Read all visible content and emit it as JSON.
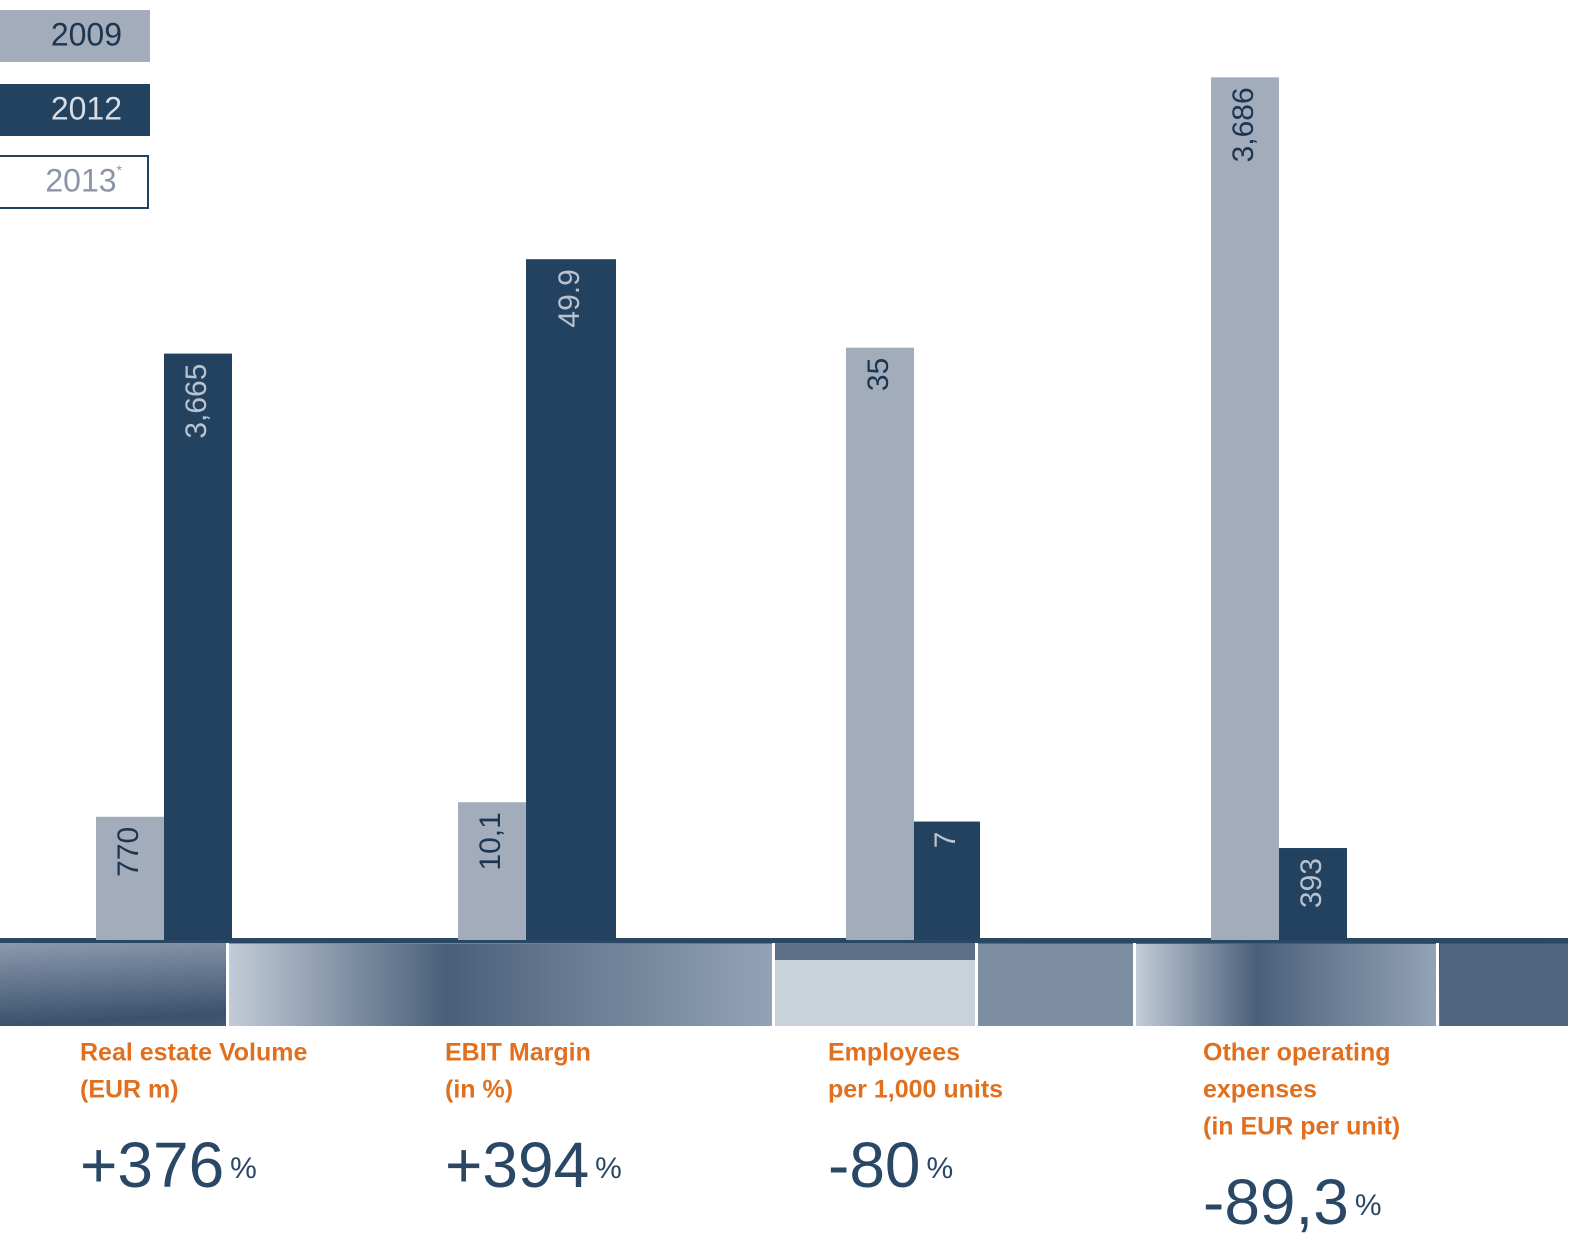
{
  "legend": [
    {
      "label": "2009",
      "color": "#a3acbb"
    },
    {
      "label": "2012",
      "color": "#234260"
    },
    {
      "label": "2013",
      "sup": "*",
      "color": "#ffffff"
    }
  ],
  "chart_data": [
    {
      "type": "bar",
      "title": [
        "Real estate Volume",
        "(EUR m)"
      ],
      "change": "+376",
      "change_unit": "%",
      "ylim": [
        0,
        5500
      ],
      "series": [
        {
          "name": "2009",
          "color": "#a3acbb",
          "values": [
            770
          ],
          "value_labels": [
            "770"
          ]
        },
        {
          "name": "2012",
          "color": "#234260",
          "values": [
            3665
          ],
          "value_labels": [
            "3,665"
          ]
        }
      ]
    },
    {
      "type": "bar",
      "title": [
        "EBIT Margin",
        "(in %)"
      ],
      "change": "+394",
      "change_unit": "%",
      "ylim": [
        0,
        64.5
      ],
      "series": [
        {
          "name": "2009",
          "color": "#a3acbb",
          "values": [
            10.1
          ],
          "value_labels": [
            "10,1"
          ]
        },
        {
          "name": "2012",
          "color": "#234260",
          "values": [
            49.9
          ],
          "value_labels": [
            "49.9"
          ]
        }
      ]
    },
    {
      "type": "bar",
      "title": [
        "Employees",
        "per 1,000 units"
      ],
      "change": "-80",
      "change_unit": "%",
      "ylim": [
        0,
        52
      ],
      "series": [
        {
          "name": "2009",
          "color": "#a3acbb",
          "values": [
            35
          ],
          "value_labels": [
            "35"
          ]
        },
        {
          "name": "2012",
          "color": "#234260",
          "values": [
            7
          ],
          "value_labels": [
            "7"
          ]
        }
      ]
    },
    {
      "type": "bar",
      "title": [
        "Other operating",
        "expenses",
        "(in EUR per unit)"
      ],
      "change": "-89,3",
      "change_unit": "%",
      "ylim": [
        0,
        3760
      ],
      "series": [
        {
          "name": "2009",
          "color": "#a3acbb",
          "values": [
            3686
          ],
          "value_labels": [
            "3,686"
          ]
        },
        {
          "name": "2012",
          "color": "#234260",
          "values": [
            393
          ],
          "value_labels": [
            "393"
          ]
        }
      ]
    }
  ]
}
